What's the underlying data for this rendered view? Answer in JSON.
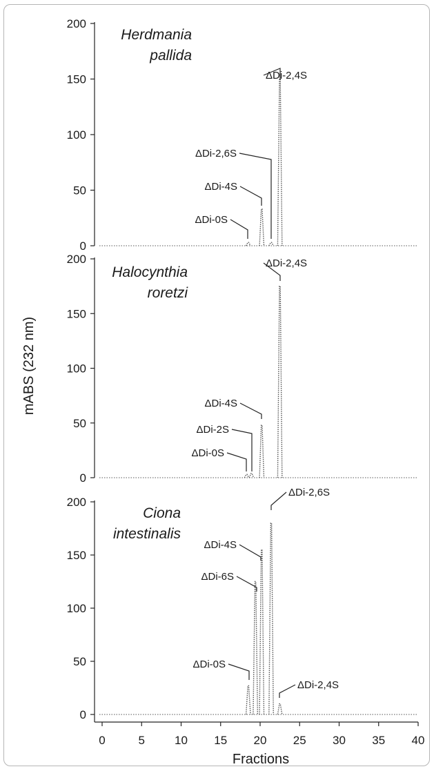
{
  "chart_data": {
    "type": "line",
    "ylabel": "mABS (232 nm)",
    "xlabel": "Fractions",
    "xlim": [
      0,
      40
    ],
    "x_ticks": [
      0,
      5,
      10,
      15,
      20,
      25,
      30,
      35,
      40
    ],
    "ylim": [
      0,
      200
    ],
    "y_ticks": [
      0,
      50,
      100,
      150,
      200
    ],
    "line_style": "dotted",
    "panels": [
      {
        "title_lines": [
          "Herdmania",
          "pallida"
        ],
        "peaks": [
          {
            "x": 18.5,
            "y": 3,
            "label": "ΔDi-0S"
          },
          {
            "x": 20.2,
            "y": 33,
            "label": "ΔDi-4S"
          },
          {
            "x": 21.4,
            "y": 3,
            "label": "ΔDi-2,6S"
          },
          {
            "x": 22.5,
            "y": 150,
            "label": "ΔDi-2,4S"
          }
        ]
      },
      {
        "title_lines": [
          "Halocynthia",
          "roretzi"
        ],
        "peaks": [
          {
            "x": 18.3,
            "y": 3,
            "label": "ΔDi-0S"
          },
          {
            "x": 18.9,
            "y": 4,
            "label": "ΔDi-2S"
          },
          {
            "x": 20.2,
            "y": 48,
            "label": "ΔDi-4S"
          },
          {
            "x": 22.5,
            "y": 175,
            "label": "ΔDi-2,4S"
          }
        ]
      },
      {
        "title_lines": [
          "Ciona",
          "intestinalis"
        ],
        "peaks": [
          {
            "x": 18.5,
            "y": 27,
            "label": "ΔDi-0S"
          },
          {
            "x": 19.4,
            "y": 125,
            "label": "ΔDi-6S"
          },
          {
            "x": 20.2,
            "y": 155,
            "label": "ΔDi-4S"
          },
          {
            "x": 21.4,
            "y": 180,
            "label": "ΔDi-2,6S"
          },
          {
            "x": 22.5,
            "y": 10,
            "label": "ΔDi-2,4S"
          }
        ]
      }
    ]
  }
}
